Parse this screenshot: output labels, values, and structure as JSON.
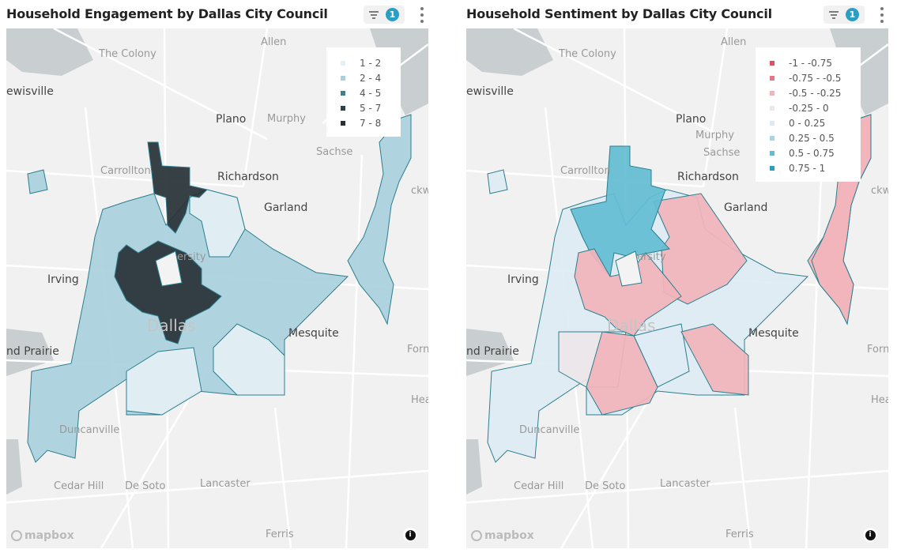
{
  "panels": [
    {
      "title": "Household Engagement by Dallas City Council",
      "filter_count": "1",
      "legend": [
        {
          "label": "1 - 2",
          "color": "#e4f0f5"
        },
        {
          "label": "2 - 4",
          "color": "#a9d0dd"
        },
        {
          "label": "4 - 5",
          "color": "#3f7f8c"
        },
        {
          "label": "5 - 7",
          "color": "#2e4148"
        },
        {
          "label": "7 - 8",
          "color": "#273135"
        }
      ],
      "district_bins": [
        1,
        1,
        1,
        0,
        0,
        0,
        4,
        4
      ]
    },
    {
      "title": "Household Sentiment by Dallas City Council",
      "filter_count": "1",
      "legend": [
        {
          "label": "-1 - -0.75",
          "color": "#e0505f"
        },
        {
          "label": "-0.75 - -0.5",
          "color": "#e57683"
        },
        {
          "label": "-0.5 - -0.25",
          "color": "#f1b4bb"
        },
        {
          "label": "-0.25 - 0",
          "color": "#ece6e8"
        },
        {
          "label": "0 - 0.25",
          "color": "#deebf4"
        },
        {
          "label": "0.25 - 0.5",
          "color": "#a7d5e3"
        },
        {
          "label": "0.5 - 0.75",
          "color": "#63bdd2"
        },
        {
          "label": "0.75 - 1",
          "color": "#2b9fbf"
        }
      ],
      "district_bins": [
        4,
        2,
        4,
        2,
        3,
        4,
        6,
        2,
        2,
        2,
        2
      ]
    }
  ],
  "map": {
    "places": [
      "Allen",
      "The Colony",
      "ewisville",
      "Plano",
      "Murphy",
      "Sachse",
      "Carrollton",
      "Richardson",
      "Garland",
      "Irving",
      "ersity",
      "Dallas",
      "Mesquite",
      "Forney",
      "nd Prairie",
      "Heartl",
      "Duncanville",
      "Cedar Hill",
      "De Soto",
      "Lancaster",
      "Ferris",
      "ckwa"
    ],
    "attribution": "mapbox",
    "info_icon": "i"
  },
  "colors": {
    "outline": "#2b7f8e",
    "badge": "#2a9fc6"
  }
}
